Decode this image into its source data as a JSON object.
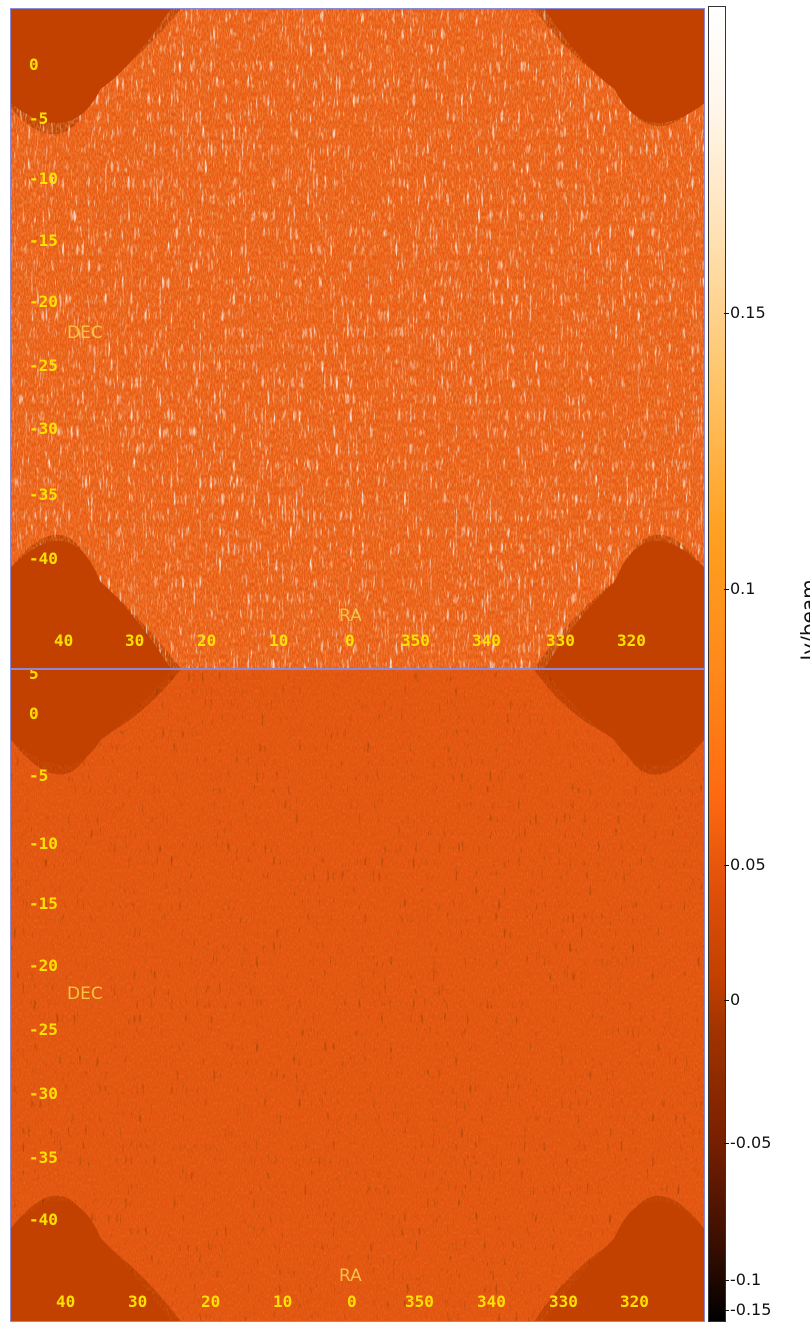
{
  "panels": [
    {
      "name": "top",
      "dec_label": "DEC",
      "ra_label": "RA",
      "dec_ticks": [
        "0",
        "-5",
        "-10",
        "-15",
        "-20",
        "-25",
        "-30",
        "-35",
        "-40"
      ],
      "ra_ticks": [
        "40",
        "30",
        "20",
        "10",
        "0",
        "350",
        "340",
        "330",
        "320"
      ]
    },
    {
      "name": "bottom",
      "dec_label": "DEC",
      "ra_label": "RA",
      "dec_ticks": [
        "5",
        "0",
        "-5",
        "-10",
        "-15",
        "-20",
        "-25",
        "-30",
        "-35",
        "-40"
      ],
      "ra_ticks": [
        "40",
        "30",
        "20",
        "10",
        "0",
        "350",
        "340",
        "330",
        "320"
      ]
    }
  ],
  "colorbar": {
    "label": "Jy/beam",
    "ticks": [
      "0.15",
      "0.1",
      "0.05",
      "0",
      "-0.05",
      "-0.1",
      "-0.15"
    ],
    "colors": {
      "background": "#c24000",
      "mid": "#ff6a10",
      "high": "#ffffff",
      "low": "#000000"
    }
  }
}
